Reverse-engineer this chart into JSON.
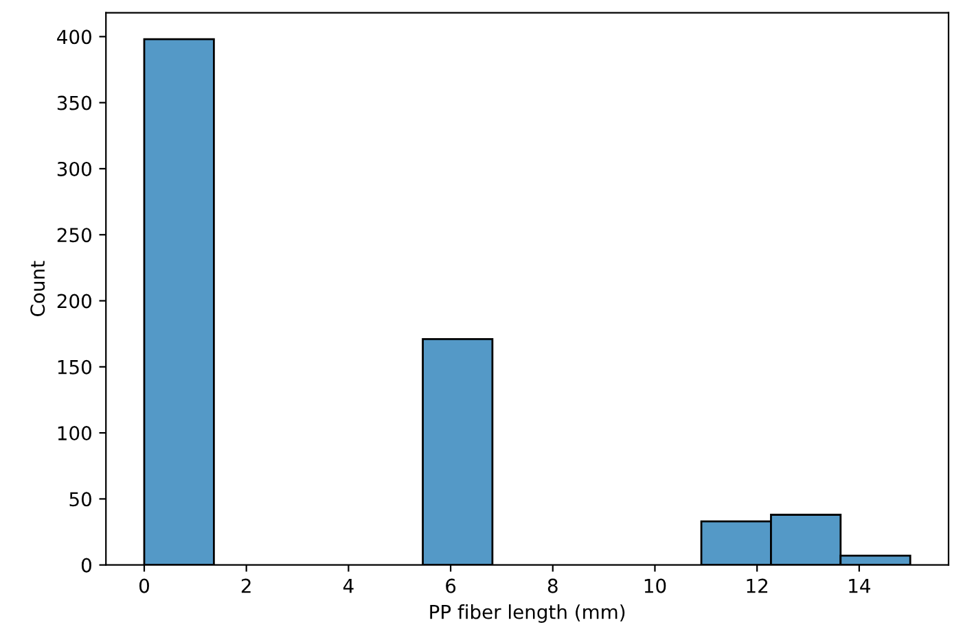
{
  "chart_data": {
    "type": "histogram",
    "xlabel": "PP fiber length (mm)",
    "ylabel": "Count",
    "bins": [
      0,
      1.364,
      2.727,
      4.091,
      5.455,
      6.818,
      8.182,
      9.545,
      10.909,
      12.273,
      13.636,
      15
    ],
    "values": [
      398,
      0,
      0,
      0,
      171,
      0,
      0,
      0,
      33,
      38,
      7
    ],
    "color": "#5499c7",
    "xlim": [
      -0.75,
      15.75
    ],
    "ylim": [
      0,
      418
    ],
    "xticks": [
      0,
      2,
      4,
      6,
      8,
      10,
      12,
      14
    ],
    "yticks": [
      0,
      50,
      100,
      150,
      200,
      250,
      300,
      350,
      400
    ],
    "grid": false
  }
}
